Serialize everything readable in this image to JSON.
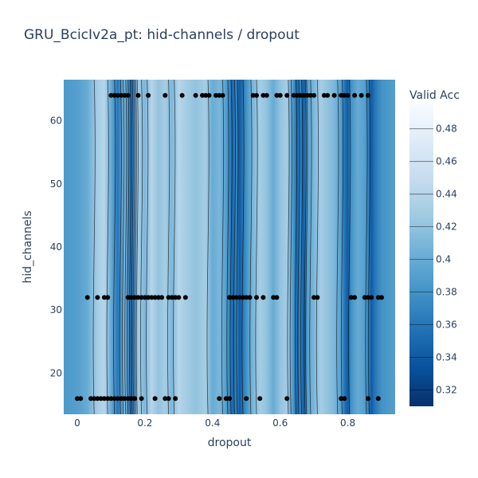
{
  "chart_data": {
    "type": "contour",
    "title": "GRU_BcicIv2a_pt: hid-channels / dropout",
    "xlabel": "dropout",
    "ylabel": "hid_channels",
    "xlim": [
      -0.04,
      0.94
    ],
    "ylim": [
      13.5,
      66.5
    ],
    "x_ticks": [
      0,
      0.2,
      0.4,
      0.6,
      0.8
    ],
    "x_tick_labels": [
      "0",
      "0.2",
      "0.4",
      "0.6",
      "0.8"
    ],
    "y_ticks": [
      20,
      30,
      40,
      50,
      60
    ],
    "y_tick_labels": [
      "20",
      "30",
      "40",
      "50",
      "60"
    ],
    "colorbar": {
      "title": "Valid Acc",
      "range": [
        0.31,
        0.495
      ],
      "ticks": [
        0.32,
        0.34,
        0.36,
        0.38,
        0.4,
        0.42,
        0.44,
        0.46,
        0.48
      ],
      "tick_labels": [
        "0.32",
        "0.34",
        "0.36",
        "0.38",
        "0.4",
        "0.42",
        "0.44",
        "0.46",
        "0.48"
      ],
      "colorscale": "Blues",
      "colors": [
        "#08306b",
        "#08519c",
        "#2171b5",
        "#4292c6",
        "#6baed6",
        "#9ecae1",
        "#c6dbef",
        "#deebf7",
        "#f7fbff"
      ]
    },
    "column_profile": [
      [
        -0.04,
        0.385
      ],
      [
        0.0,
        0.39
      ],
      [
        0.03,
        0.4
      ],
      [
        0.06,
        0.43
      ],
      [
        0.08,
        0.44
      ],
      [
        0.1,
        0.4
      ],
      [
        0.12,
        0.36
      ],
      [
        0.14,
        0.41
      ],
      [
        0.16,
        0.35
      ],
      [
        0.18,
        0.43
      ],
      [
        0.2,
        0.41
      ],
      [
        0.22,
        0.44
      ],
      [
        0.24,
        0.42
      ],
      [
        0.26,
        0.43
      ],
      [
        0.28,
        0.41
      ],
      [
        0.3,
        0.44
      ],
      [
        0.32,
        0.43
      ],
      [
        0.35,
        0.42
      ],
      [
        0.38,
        0.43
      ],
      [
        0.4,
        0.4
      ],
      [
        0.42,
        0.41
      ],
      [
        0.44,
        0.39
      ],
      [
        0.45,
        0.37
      ],
      [
        0.46,
        0.35
      ],
      [
        0.47,
        0.37
      ],
      [
        0.48,
        0.34
      ],
      [
        0.5,
        0.38
      ],
      [
        0.52,
        0.41
      ],
      [
        0.54,
        0.43
      ],
      [
        0.56,
        0.42
      ],
      [
        0.58,
        0.4
      ],
      [
        0.6,
        0.42
      ],
      [
        0.62,
        0.43
      ],
      [
        0.64,
        0.38
      ],
      [
        0.65,
        0.35
      ],
      [
        0.66,
        0.37
      ],
      [
        0.67,
        0.34
      ],
      [
        0.68,
        0.39
      ],
      [
        0.7,
        0.41
      ],
      [
        0.72,
        0.43
      ],
      [
        0.74,
        0.42
      ],
      [
        0.76,
        0.41
      ],
      [
        0.78,
        0.39
      ],
      [
        0.79,
        0.36
      ],
      [
        0.8,
        0.34
      ],
      [
        0.81,
        0.38
      ],
      [
        0.83,
        0.4
      ],
      [
        0.85,
        0.39
      ],
      [
        0.86,
        0.37
      ],
      [
        0.87,
        0.34
      ],
      [
        0.88,
        0.36
      ],
      [
        0.9,
        0.38
      ],
      [
        0.94,
        0.39
      ]
    ],
    "series": [
      {
        "y": 16,
        "x": [
          0.0,
          0.01,
          0.04,
          0.05,
          0.06,
          0.07,
          0.08,
          0.09,
          0.1,
          0.11,
          0.12,
          0.13,
          0.14,
          0.15,
          0.16,
          0.17,
          0.19,
          0.23,
          0.26,
          0.27,
          0.29,
          0.42,
          0.44,
          0.45,
          0.5,
          0.54,
          0.62,
          0.78,
          0.79,
          0.86,
          0.89
        ]
      },
      {
        "y": 32,
        "x": [
          0.03,
          0.06,
          0.08,
          0.09,
          0.15,
          0.16,
          0.17,
          0.18,
          0.19,
          0.2,
          0.21,
          0.22,
          0.23,
          0.24,
          0.25,
          0.27,
          0.28,
          0.29,
          0.3,
          0.32,
          0.45,
          0.46,
          0.47,
          0.48,
          0.49,
          0.5,
          0.51,
          0.53,
          0.55,
          0.58,
          0.59,
          0.7,
          0.71,
          0.81,
          0.82,
          0.85,
          0.86,
          0.87,
          0.89,
          0.9
        ]
      },
      {
        "y": 64,
        "x": [
          0.1,
          0.11,
          0.12,
          0.13,
          0.14,
          0.15,
          0.18,
          0.21,
          0.26,
          0.31,
          0.35,
          0.37,
          0.38,
          0.39,
          0.41,
          0.42,
          0.43,
          0.52,
          0.53,
          0.55,
          0.56,
          0.59,
          0.6,
          0.62,
          0.64,
          0.65,
          0.66,
          0.67,
          0.68,
          0.69,
          0.7,
          0.73,
          0.74,
          0.76,
          0.78,
          0.79,
          0.8,
          0.82,
          0.84,
          0.86
        ]
      }
    ]
  }
}
